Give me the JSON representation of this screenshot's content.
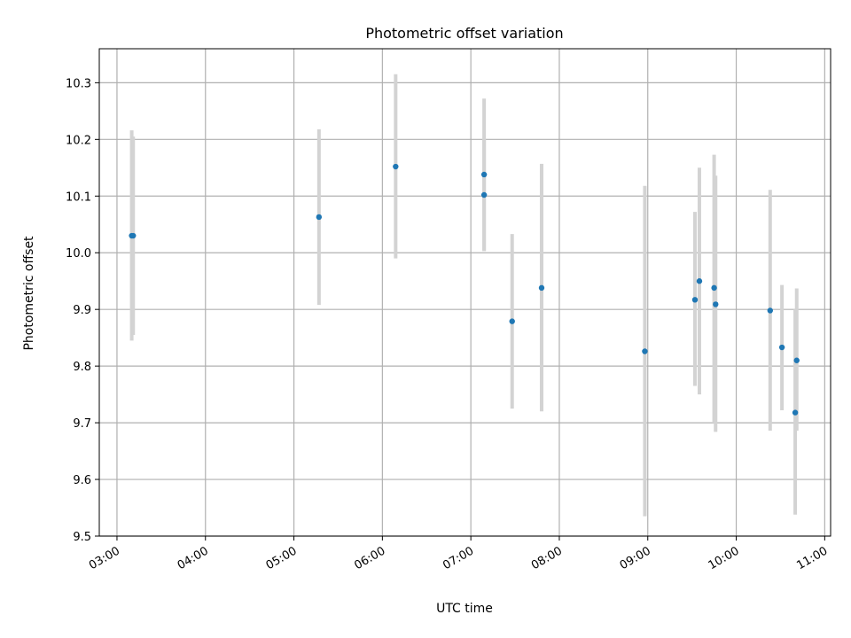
{
  "chart_data": {
    "type": "scatter",
    "title": "Photometric offset variation",
    "xlabel": "UTC time",
    "ylabel": "Photometric offset",
    "xlim": [
      "02:48",
      "11:04"
    ],
    "ylim": [
      9.5,
      10.36
    ],
    "xticks": [
      "03:00",
      "04:00",
      "05:00",
      "06:00",
      "07:00",
      "08:00",
      "09:00",
      "10:00",
      "11:00"
    ],
    "yticks": [
      9.5,
      9.6,
      9.7,
      9.8,
      9.9,
      10.0,
      10.1,
      10.2,
      10.3
    ],
    "yticklabels": [
      "9.5",
      "9.6",
      "9.7",
      "9.8",
      "9.9",
      "10.0",
      "10.1",
      "10.2",
      "10.3"
    ],
    "grid": true,
    "point_color": "#1f77b4",
    "errorbar_color": "#d3d3d3",
    "points": [
      {
        "t": "03:10",
        "y": 10.03,
        "lo": 9.845,
        "hi": 10.216
      },
      {
        "t": "03:11",
        "y": 10.03,
        "lo": 9.855,
        "hi": 10.205
      },
      {
        "t": "05:17",
        "y": 10.063,
        "lo": 9.908,
        "hi": 10.218
      },
      {
        "t": "06:09",
        "y": 10.152,
        "lo": 9.99,
        "hi": 10.315
      },
      {
        "t": "07:09",
        "y": 10.138,
        "lo": 10.003,
        "hi": 10.272
      },
      {
        "t": "07:09",
        "y": 10.102,
        "lo": 10.004,
        "hi": 10.2
      },
      {
        "t": "07:28",
        "y": 9.879,
        "lo": 9.725,
        "hi": 10.033
      },
      {
        "t": "07:48",
        "y": 9.938,
        "lo": 9.72,
        "hi": 10.157
      },
      {
        "t": "08:58",
        "y": 9.826,
        "lo": 9.535,
        "hi": 10.118
      },
      {
        "t": "09:32",
        "y": 9.917,
        "lo": 9.765,
        "hi": 10.072
      },
      {
        "t": "09:35",
        "y": 9.95,
        "lo": 9.75,
        "hi": 10.15
      },
      {
        "t": "09:45",
        "y": 9.938,
        "lo": 9.7,
        "hi": 10.173
      },
      {
        "t": "09:46",
        "y": 9.909,
        "lo": 9.684,
        "hi": 10.136
      },
      {
        "t": "10:23",
        "y": 9.898,
        "lo": 9.686,
        "hi": 10.111
      },
      {
        "t": "10:31",
        "y": 9.833,
        "lo": 9.722,
        "hi": 9.943
      },
      {
        "t": "10:40",
        "y": 9.718,
        "lo": 9.538,
        "hi": 9.9
      },
      {
        "t": "10:41",
        "y": 9.81,
        "lo": 9.686,
        "hi": 9.937
      }
    ]
  }
}
